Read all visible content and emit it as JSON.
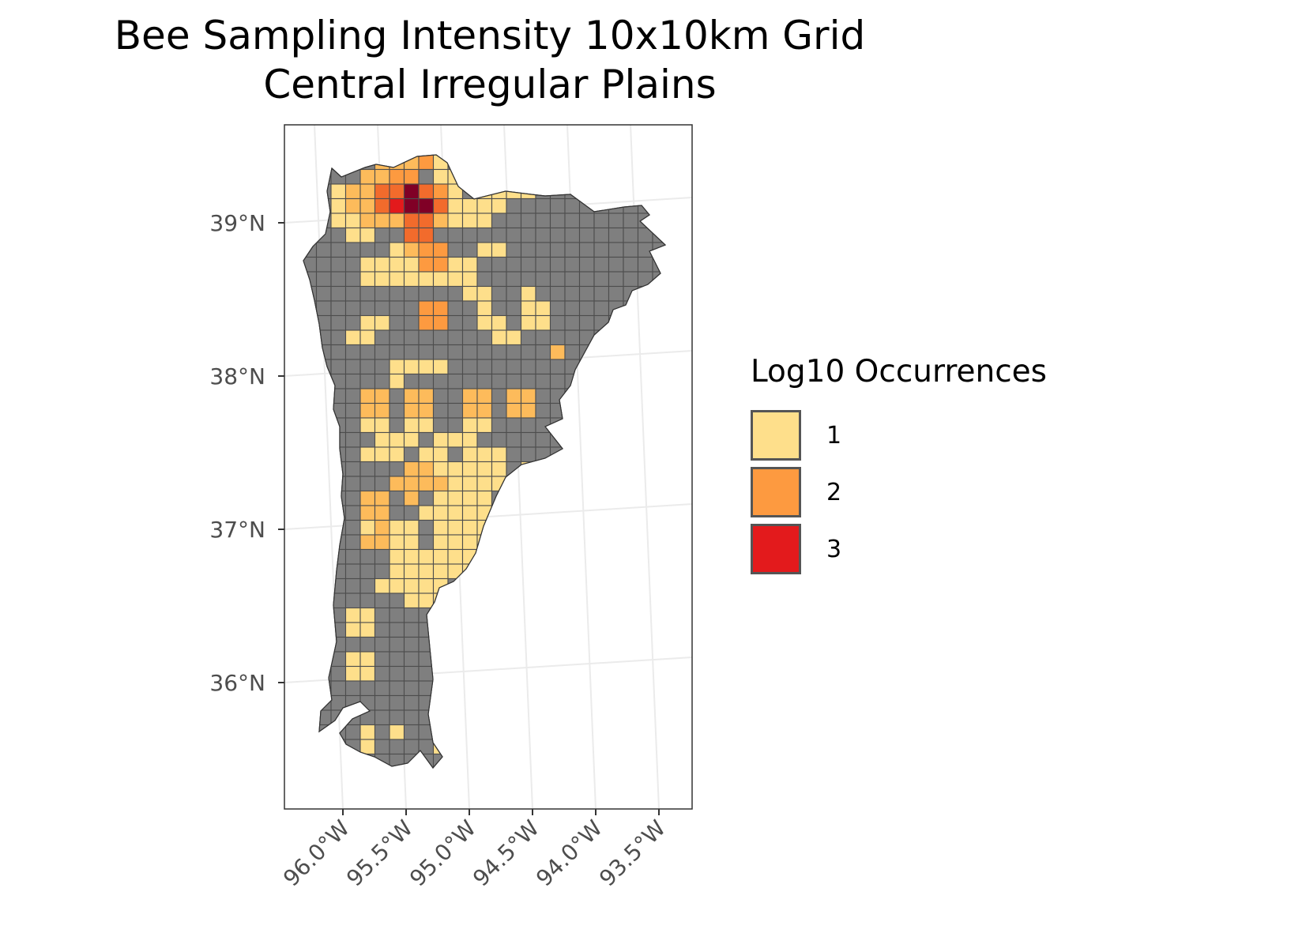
{
  "title": {
    "line1": "Bee Sampling Intensity 10x10km Grid",
    "line2": "Central Irregular Plains"
  },
  "axes": {
    "y_ticks": [
      {
        "value": 39,
        "label": "39°N"
      },
      {
        "value": 38,
        "label": "38°N"
      },
      {
        "value": 37,
        "label": "37°N"
      },
      {
        "value": 36,
        "label": "36°N"
      }
    ],
    "x_ticks": [
      {
        "value": -96.0,
        "label": "96.0°W"
      },
      {
        "value": -95.5,
        "label": "95.5°W"
      },
      {
        "value": -95.0,
        "label": "95.0°W"
      },
      {
        "value": -94.5,
        "label": "94.5°W"
      },
      {
        "value": -94.0,
        "label": "94.0°W"
      },
      {
        "value": -93.5,
        "label": "93.5°W"
      }
    ]
  },
  "legend": {
    "title": "Log10 Occurrences",
    "items": [
      {
        "label": "1",
        "color": "#FEDF8B"
      },
      {
        "label": "2",
        "color": "#FD9A40"
      },
      {
        "label": "3",
        "color": "#E31A1C"
      }
    ]
  },
  "colors": {
    "no_data": "#7F7F7F",
    "cell_border": "#4D4D4D",
    "panel_border": "#333333",
    "graticule": "#EBEBEB"
  },
  "map_data": {
    "type": "choropleth-grid",
    "region": "Central Irregular Plains",
    "cell_size": "10x10km",
    "value_field": "Log10 Occurrences",
    "scale": "continuous 0 to 3.3 (YlOrRd)",
    "legend_placement": "right"
  }
}
